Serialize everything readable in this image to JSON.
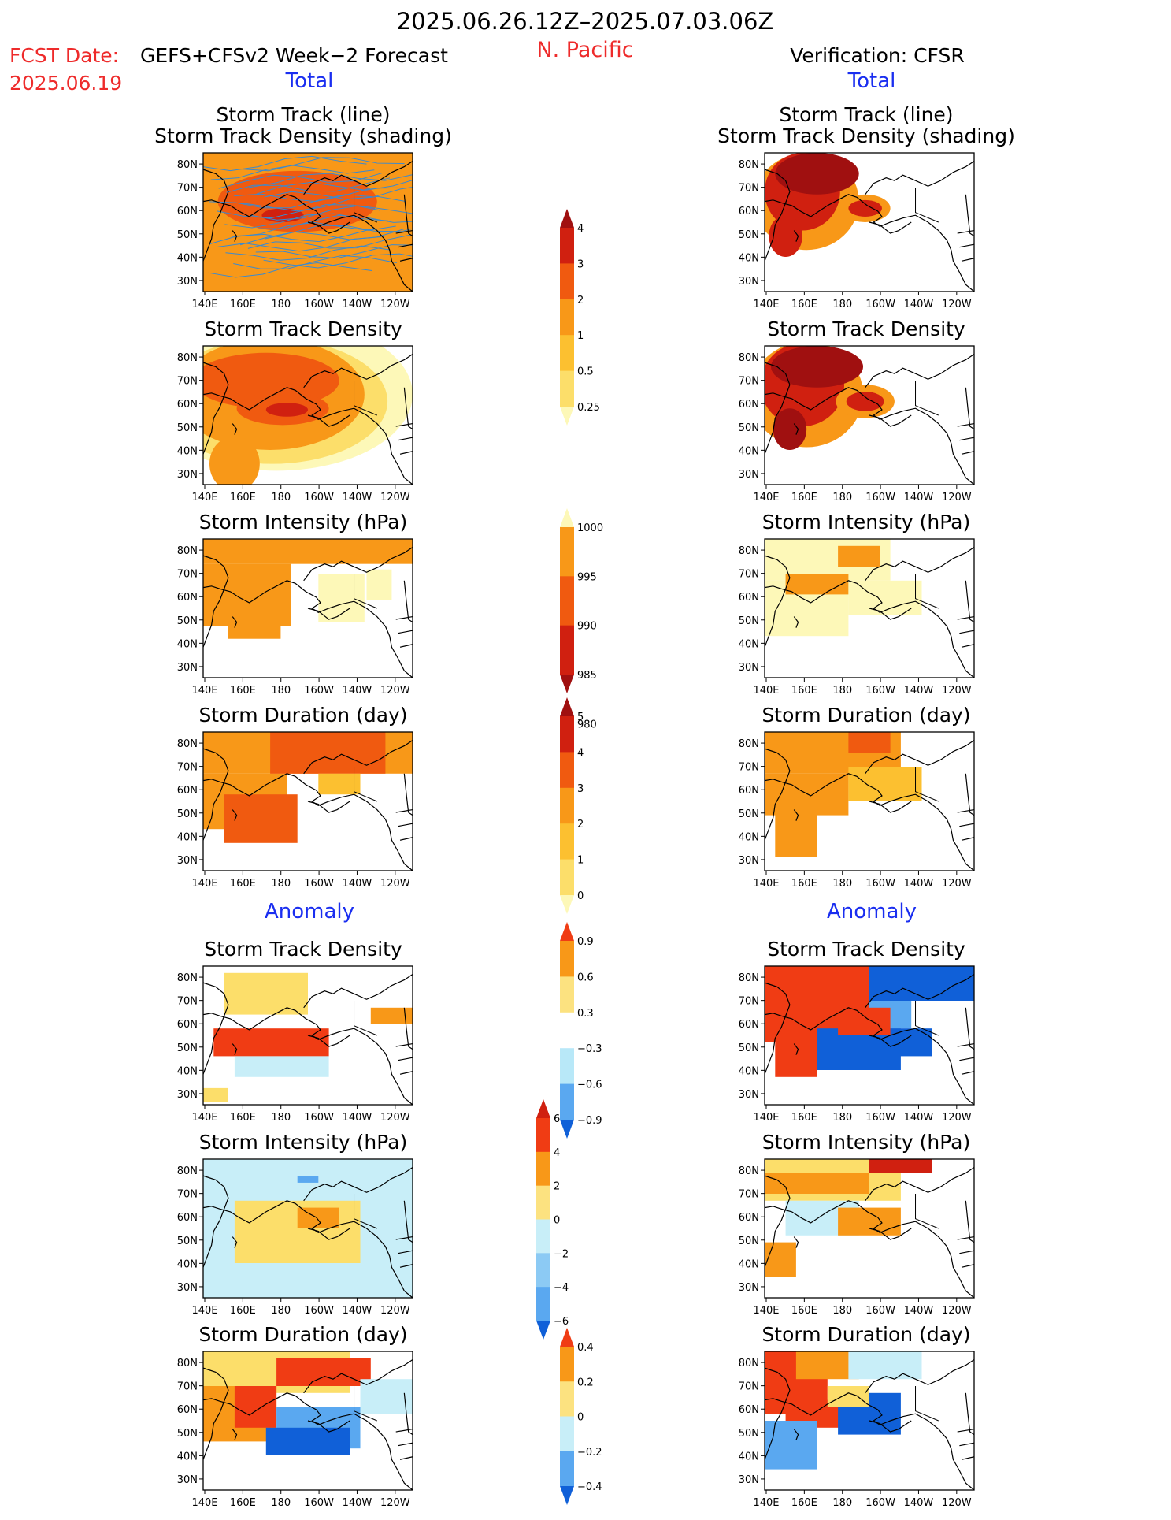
{
  "header": {
    "period": "2025.06.26.12Z–2025.07.03.06Z",
    "region": "N. Pacific",
    "fcst_label": "FCST Date:",
    "fcst_model": "GEFS+CFSv2 Week−2 Forecast",
    "fcst_date": "2025.06.19",
    "verification": "Verification: CFSR"
  },
  "sections": {
    "total": "Total",
    "anomaly": "Anomaly"
  },
  "panel_titles": {
    "track_line": "Storm Track (line)",
    "track_density_shading": "Storm Track Density (shading)",
    "track_density": "Storm Track Density",
    "intensity": "Storm Intensity (hPa)",
    "duration": "Storm Duration (day)"
  },
  "axes": {
    "lon_labels": [
      "140E",
      "160E",
      "180",
      "160W",
      "140W",
      "120W"
    ],
    "lat_labels": [
      "80N",
      "70N",
      "60N",
      "50N",
      "40N",
      "30N"
    ]
  },
  "colorbars": {
    "density": {
      "labels": [
        "4",
        "3",
        "2",
        "1",
        "0.5",
        "0.25"
      ],
      "colors": [
        "#a01010",
        "#d02010",
        "#f05a10",
        "#f89818",
        "#fcc030",
        "#fcde6a",
        "#fdf8b8"
      ]
    },
    "intensity": {
      "labels": [
        "1000",
        "995",
        "990",
        "985",
        "980"
      ],
      "colors": [
        "#fdf8b8",
        "#f89818",
        "#f05a10",
        "#d02010",
        "#a01010"
      ]
    },
    "duration": {
      "labels": [
        "5",
        "4",
        "3",
        "2",
        "1",
        "0"
      ],
      "colors": [
        "#a01010",
        "#d02010",
        "#f05a10",
        "#f89818",
        "#fcc030",
        "#fcde6a",
        "#fdf8b8"
      ]
    },
    "anom_density": {
      "labels": [
        "0.9",
        "0.6",
        "0.3",
        "−0.3",
        "−0.6",
        "−0.9"
      ],
      "colors": [
        "#f03c14",
        "#f89818",
        "#fce280",
        "#ffffff",
        "#b8e8f8",
        "#5aa8f0",
        "#1060d8"
      ]
    },
    "anom_intensity": {
      "labels": [
        "6",
        "4",
        "2",
        "0",
        "−2",
        "−4",
        "−6"
      ],
      "colors": [
        "#d02010",
        "#f03c14",
        "#f89818",
        "#fce280",
        "#c8eef8",
        "#8ccaf4",
        "#5aa8f0",
        "#1060d8"
      ]
    },
    "anom_duration": {
      "labels": [
        "0.4",
        "0.2",
        "0",
        "−0.2",
        "−0.4"
      ],
      "colors": [
        "#f03c14",
        "#f89818",
        "#fce280",
        "#c8eef8",
        "#5aa8f0",
        "#1060d8"
      ]
    }
  },
  "colors": {
    "title_red": "#ee2b2b",
    "title_blue": "#1a2ef0",
    "track_line": "#3a8ad0"
  }
}
